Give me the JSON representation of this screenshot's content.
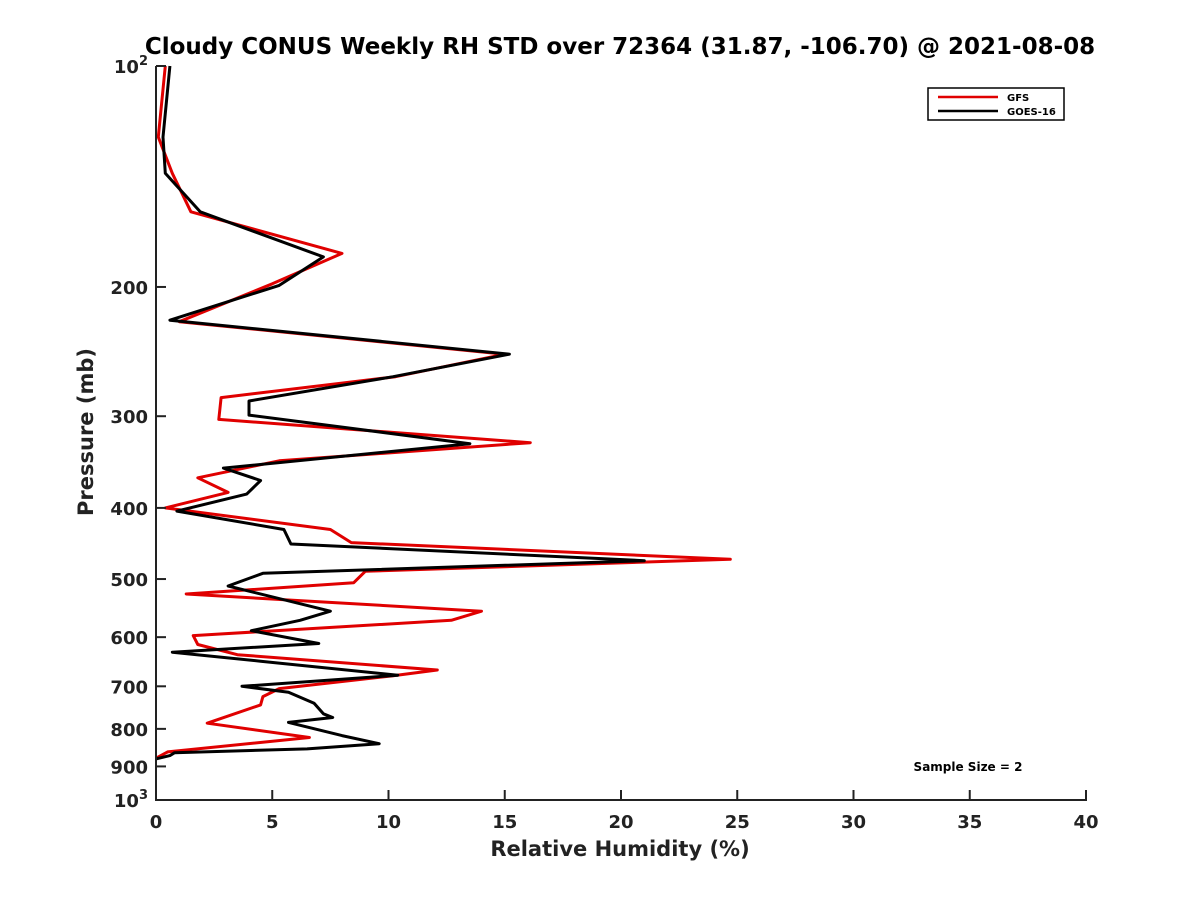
{
  "chart_data": {
    "type": "line",
    "title": "Cloudy CONUS Weekly RH STD over 72364 (31.87, -106.70) @ 2021-08-08",
    "xlabel": "Relative Humidity (%)",
    "ylabel": "Pressure (mb)",
    "xlim": [
      0,
      40
    ],
    "ylim": [
      1000,
      100
    ],
    "y_scale": "log",
    "y_reversed": true,
    "x_ticks": [
      0,
      5,
      10,
      15,
      20,
      25,
      30,
      35,
      40
    ],
    "x_tick_labels": [
      "0",
      "5",
      "10",
      "15",
      "20",
      "25",
      "30",
      "35",
      "40"
    ],
    "y_ticks": [
      100,
      200,
      300,
      400,
      500,
      600,
      700,
      800,
      900,
      1000
    ],
    "y_tick_labels": [
      {
        "base": "10",
        "exp": "2"
      },
      {
        "base": "200",
        "exp": ""
      },
      {
        "base": "300",
        "exp": ""
      },
      {
        "base": "400",
        "exp": ""
      },
      {
        "base": "500",
        "exp": ""
      },
      {
        "base": "600",
        "exp": ""
      },
      {
        "base": "700",
        "exp": ""
      },
      {
        "base": "800",
        "exp": ""
      },
      {
        "base": "900",
        "exp": ""
      },
      {
        "base": "10",
        "exp": "3"
      }
    ],
    "grid": false,
    "legend_position": "top-right",
    "annotation": "Sample Size = 2",
    "series": [
      {
        "name": "GFS",
        "color": "#e00000",
        "points": [
          [
            0.4,
            100
          ],
          [
            0.1,
            125
          ],
          [
            0.7,
            140
          ],
          [
            1.5,
            158
          ],
          [
            8.0,
            180
          ],
          [
            5.0,
            198
          ],
          [
            1.0,
            223
          ],
          [
            15.0,
            247
          ],
          [
            10.3,
            265
          ],
          [
            2.8,
            283
          ],
          [
            2.7,
            303
          ],
          [
            16.1,
            326
          ],
          [
            5.3,
            345
          ],
          [
            1.8,
            364
          ],
          [
            3.1,
            381
          ],
          [
            0.4,
            400
          ],
          [
            7.5,
            428
          ],
          [
            8.4,
            446
          ],
          [
            24.7,
            470
          ],
          [
            9.0,
            488
          ],
          [
            8.5,
            506
          ],
          [
            1.3,
            524
          ],
          [
            14.0,
            553
          ],
          [
            12.7,
            569
          ],
          [
            1.6,
            597
          ],
          [
            1.8,
            614
          ],
          [
            3.5,
            634
          ],
          [
            12.1,
            665
          ],
          [
            10.2,
            677
          ],
          [
            5.3,
            705
          ],
          [
            4.6,
            723
          ],
          [
            4.5,
            742
          ],
          [
            2.2,
            786
          ],
          [
            6.6,
            822
          ],
          [
            0.5,
            860
          ],
          [
            0.0,
            877
          ]
        ]
      },
      {
        "name": "GOES-16",
        "color": "#000000",
        "points": [
          [
            0.6,
            100
          ],
          [
            0.3,
            125
          ],
          [
            0.4,
            140
          ],
          [
            1.9,
            158
          ],
          [
            7.2,
            182
          ],
          [
            5.3,
            199
          ],
          [
            0.6,
            222
          ],
          [
            15.2,
            247
          ],
          [
            10.2,
            265
          ],
          [
            4.0,
            286
          ],
          [
            4.0,
            299
          ],
          [
            13.5,
            327
          ],
          [
            2.9,
            353
          ],
          [
            4.5,
            367
          ],
          [
            3.9,
            383
          ],
          [
            0.9,
            404
          ],
          [
            5.5,
            428
          ],
          [
            5.8,
            448
          ],
          [
            21.0,
            472
          ],
          [
            4.6,
            491
          ],
          [
            3.1,
            511
          ],
          [
            7.5,
            553
          ],
          [
            6.2,
            569
          ],
          [
            4.1,
            588
          ],
          [
            7.0,
            612
          ],
          [
            0.7,
            629
          ],
          [
            4.5,
            647
          ],
          [
            10.4,
            676
          ],
          [
            3.7,
            700
          ],
          [
            5.7,
            713
          ],
          [
            6.8,
            738
          ],
          [
            7.2,
            763
          ],
          [
            7.6,
            772
          ],
          [
            5.7,
            784
          ],
          [
            8.0,
            817
          ],
          [
            9.6,
            838
          ],
          [
            6.5,
            852
          ],
          [
            0.8,
            862
          ],
          [
            0.6,
            870
          ],
          [
            0.0,
            879
          ]
        ]
      }
    ]
  }
}
